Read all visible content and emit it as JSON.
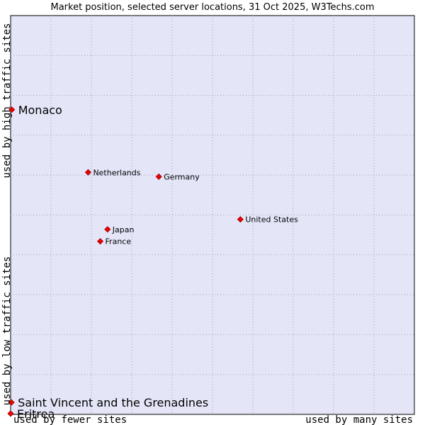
{
  "chart_data": {
    "type": "scatter",
    "title": "Market position, selected server locations, 31 Oct 2025, W3Techs.com",
    "xlabel_left": "used by fewer sites",
    "xlabel_right": "used by many sites",
    "ylabel_top": "used by high traffic sites",
    "ylabel_bottom": "used by low traffic sites",
    "xlim": [
      0,
      100
    ],
    "ylim": [
      0,
      100
    ],
    "grid": true,
    "colors": {
      "plot_bg": "#e4e6f8",
      "grid": "#9a9ab8",
      "marker": "#ee0000",
      "marker_edge": "#990000",
      "text": "#000000"
    },
    "points": [
      {
        "label": "Monaco",
        "x": 0.3,
        "y": 76.4,
        "size": "large"
      },
      {
        "label": "Netherlands",
        "x": 19.2,
        "y": 60.7,
        "size": "small"
      },
      {
        "label": "Germany",
        "x": 36.7,
        "y": 59.6,
        "size": "small"
      },
      {
        "label": "United States",
        "x": 56.9,
        "y": 48.9,
        "size": "small"
      },
      {
        "label": "Japan",
        "x": 24.0,
        "y": 46.4,
        "size": "small"
      },
      {
        "label": "France",
        "x": 22.2,
        "y": 43.4,
        "size": "small"
      },
      {
        "label": "Saint Vincent and the Grenadines",
        "x": 0.2,
        "y": 3.0,
        "size": "large"
      },
      {
        "label": "Eritrea",
        "x": 0.0,
        "y": 0.2,
        "size": "large"
      }
    ]
  }
}
